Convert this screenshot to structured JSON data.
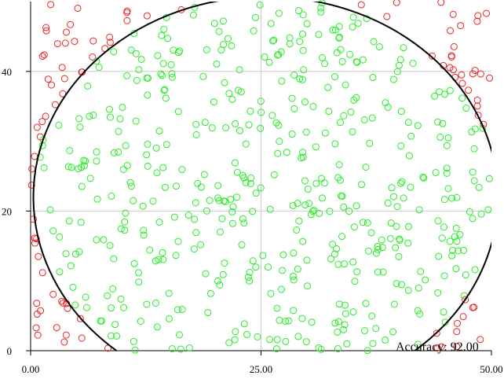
{
  "chart_data": {
    "type": "scatter",
    "xlim": [
      0,
      50
    ],
    "ylim": [
      0,
      50
    ],
    "x_ticks": [
      "0.00",
      "25.00",
      "50.00"
    ],
    "x_tick_values": [
      0,
      25,
      50
    ],
    "y_ticks": [
      "0",
      "20",
      "40"
    ],
    "y_tick_values": [
      0,
      20,
      40
    ],
    "grid": true,
    "annotation": "Accuracy: 92.00",
    "point_colors": {
      "inside": "#22ee22",
      "outside": "#ee2222"
    },
    "boundary_color": "#000000",
    "boundary": {
      "shape": "ellipse",
      "center": [
        25.5,
        22
      ],
      "radius_x": 25.2,
      "radius_y": 28.7
    },
    "sample_count": 600,
    "sample_seed": 12345
  }
}
